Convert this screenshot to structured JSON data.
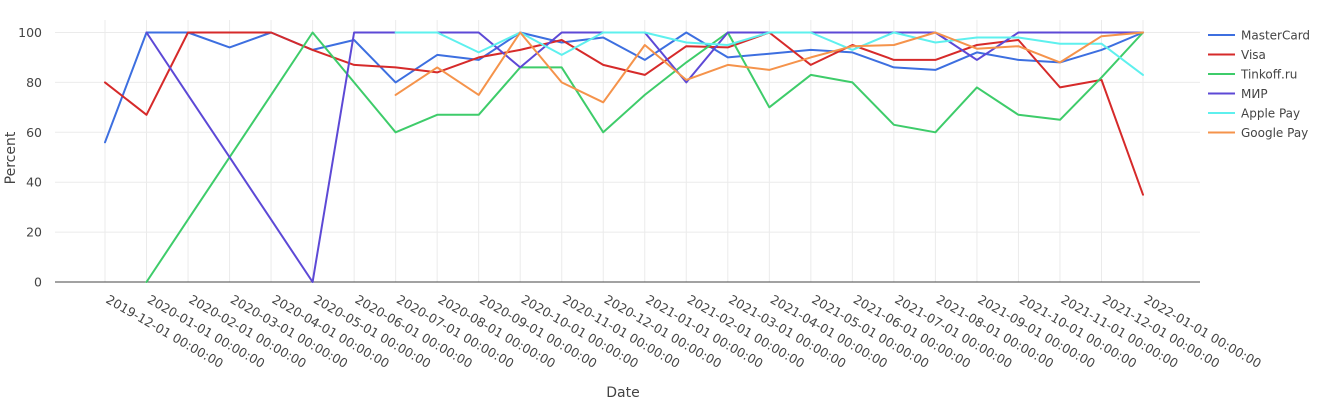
{
  "chart_data": {
    "type": "line",
    "xlabel": "Date",
    "ylabel": "Percent",
    "ylim": [
      0,
      105
    ],
    "yticks": [
      0,
      20,
      40,
      60,
      80,
      100
    ],
    "grid": true,
    "legend_position": "top-right",
    "x": [
      "2019-12-01 00:00:00",
      "2020-01-01 00:00:00",
      "2020-02-01 00:00:00",
      "2020-03-01 00:00:00",
      "2020-04-01 00:00:00",
      "2020-05-01 00:00:00",
      "2020-06-01 00:00:00",
      "2020-07-01 00:00:00",
      "2020-08-01 00:00:00",
      "2020-09-01 00:00:00",
      "2020-10-01 00:00:00",
      "2020-11-01 00:00:00",
      "2020-12-01 00:00:00",
      "2021-01-01 00:00:00",
      "2021-02-01 00:00:00",
      "2021-03-01 00:00:00",
      "2021-04-01 00:00:00",
      "2021-05-01 00:00:00",
      "2021-06-01 00:00:00",
      "2021-07-01 00:00:00",
      "2021-08-01 00:00:00",
      "2021-09-01 00:00:00",
      "2021-10-01 00:00:00",
      "2021-11-01 00:00:00",
      "2021-12-01 00:00:00",
      "2022-01-01 00:00:00"
    ],
    "series": [
      {
        "name": "MasterCard",
        "color": "#3d6fe0",
        "values": [
          56,
          100,
          100,
          94,
          100,
          93,
          97,
          80,
          91,
          89,
          100,
          96,
          98,
          89,
          100,
          90,
          91.5,
          93,
          92,
          86,
          85,
          92,
          89,
          88,
          93,
          100
        ]
      },
      {
        "name": "Visa",
        "color": "#d62a2a",
        "values": [
          80,
          67,
          100,
          100,
          100,
          93,
          87,
          86,
          84,
          90,
          93,
          97,
          87,
          83,
          94.5,
          94,
          100,
          87,
          95,
          89,
          89,
          95,
          97,
          78,
          81,
          35
        ]
      },
      {
        "name": "Tinkoff.ru",
        "color": "#3ecc6a",
        "values": [
          null,
          0,
          25,
          50,
          75,
          100,
          80,
          60,
          67,
          67,
          86,
          86,
          60,
          75,
          88,
          100,
          70,
          83,
          80,
          63,
          60,
          78,
          67,
          65,
          82,
          100
        ]
      },
      {
        "name": "МИР",
        "color": "#5d49d6",
        "values": [
          null,
          100,
          75,
          50,
          25,
          0,
          100,
          100,
          100,
          100,
          86,
          100,
          100,
          100,
          80,
          100,
          100,
          100,
          100,
          100,
          100,
          89,
          100,
          100,
          100,
          100
        ]
      },
      {
        "name": "Apple Pay",
        "color": "#5ef0ee",
        "values": [
          null,
          null,
          null,
          null,
          null,
          null,
          null,
          100,
          100,
          92,
          100,
          91,
          100,
          100,
          96,
          95,
          100,
          100,
          93,
          100,
          96,
          98,
          98,
          95.5,
          95.5,
          83
        ]
      },
      {
        "name": "Google Pay",
        "color": "#f5934b",
        "values": [
          null,
          null,
          null,
          null,
          null,
          null,
          null,
          75,
          86,
          75,
          100,
          80,
          72,
          95,
          81,
          87,
          85,
          90,
          94.5,
          95,
          100,
          93.5,
          94.5,
          88,
          98.5,
          100
        ]
      }
    ]
  }
}
